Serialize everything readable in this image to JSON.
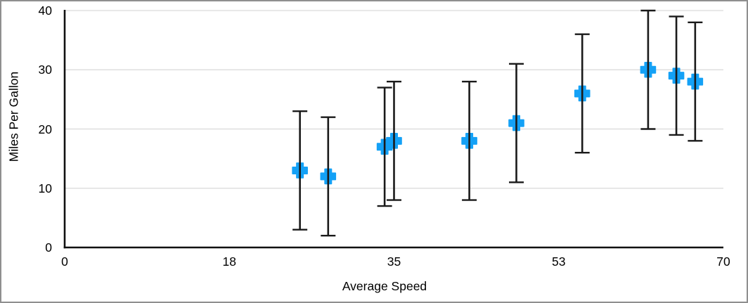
{
  "chart_data": {
    "type": "scatter",
    "title": "",
    "xlabel": "Average Speed",
    "ylabel": "Miles Per Gallon",
    "xlim": [
      0,
      70
    ],
    "ylim": [
      0,
      40
    ],
    "xtick_labels": [
      "0",
      "18",
      "35",
      "53",
      "70"
    ],
    "ytick_labels": [
      "0",
      "10",
      "20",
      "30",
      "40"
    ],
    "ytick_values": [
      0,
      10,
      20,
      30,
      40
    ],
    "grid": "horizontal-only",
    "legend": "none",
    "marker": "plus",
    "marker_color": "#14A1F6",
    "axis_color": "#111111",
    "error_bar_color": "#1a1a1a",
    "gridline_color": "#d9d9d9",
    "error_bars": {
      "type": "fixed",
      "plus": 10,
      "minus": 10
    },
    "points": [
      {
        "x": 25,
        "y": 13
      },
      {
        "x": 28,
        "y": 12
      },
      {
        "x": 34,
        "y": 17
      },
      {
        "x": 35,
        "y": 18
      },
      {
        "x": 43,
        "y": 18
      },
      {
        "x": 48,
        "y": 21
      },
      {
        "x": 55,
        "y": 26
      },
      {
        "x": 62,
        "y": 30
      },
      {
        "x": 65,
        "y": 29
      },
      {
        "x": 67,
        "y": 28
      }
    ]
  }
}
